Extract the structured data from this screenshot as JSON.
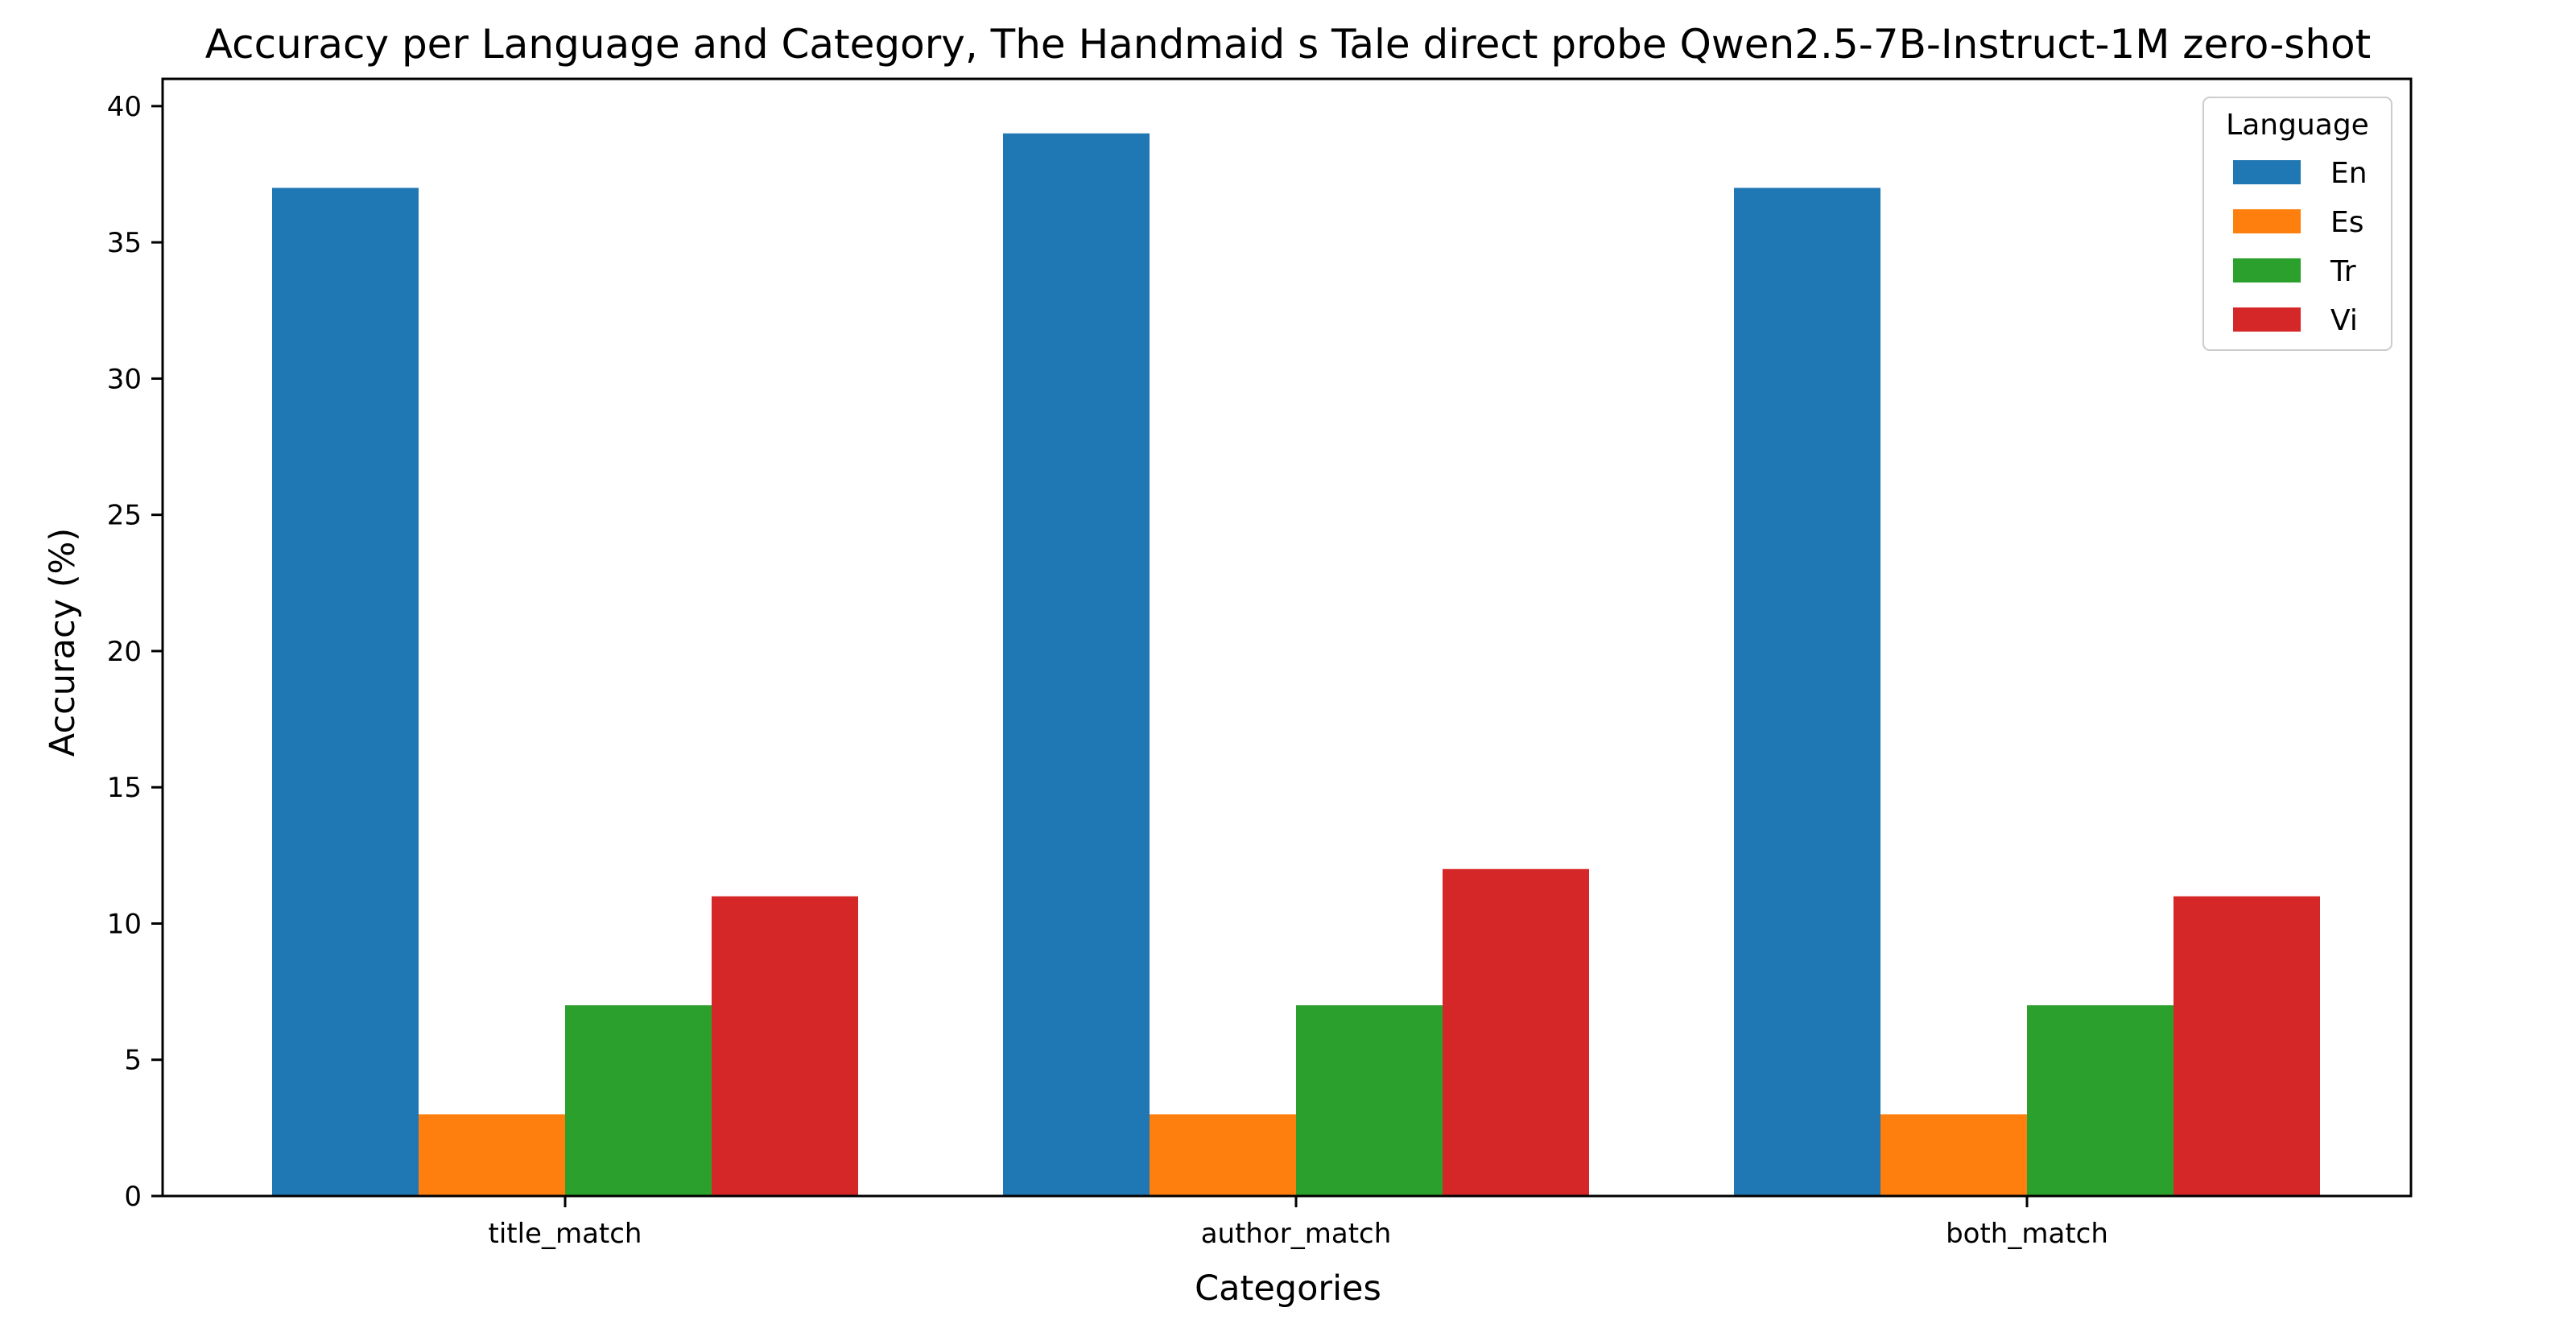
{
  "chart_data": {
    "type": "bar",
    "title": "Accuracy per Language and Category, The Handmaid s Tale direct probe Qwen2.5-7B-Instruct-1M zero-shot",
    "xlabel": "Categories",
    "ylabel": "Accuracy (%)",
    "categories": [
      "title_match",
      "author_match",
      "both_match"
    ],
    "ylim": [
      0,
      41
    ],
    "yticks": [
      0,
      5,
      10,
      15,
      20,
      25,
      30,
      35,
      40
    ],
    "grid": false,
    "legend": {
      "title": "Language",
      "placement": "top-right"
    },
    "series": [
      {
        "name": "En",
        "color": "#1f77b4",
        "values": [
          37,
          39,
          37
        ]
      },
      {
        "name": "Es",
        "color": "#ff7f0e",
        "values": [
          3,
          3,
          3
        ]
      },
      {
        "name": "Tr",
        "color": "#2ca02c",
        "values": [
          7,
          7,
          7
        ]
      },
      {
        "name": "Vi",
        "color": "#d62728",
        "values": [
          11,
          12,
          11
        ]
      }
    ]
  }
}
